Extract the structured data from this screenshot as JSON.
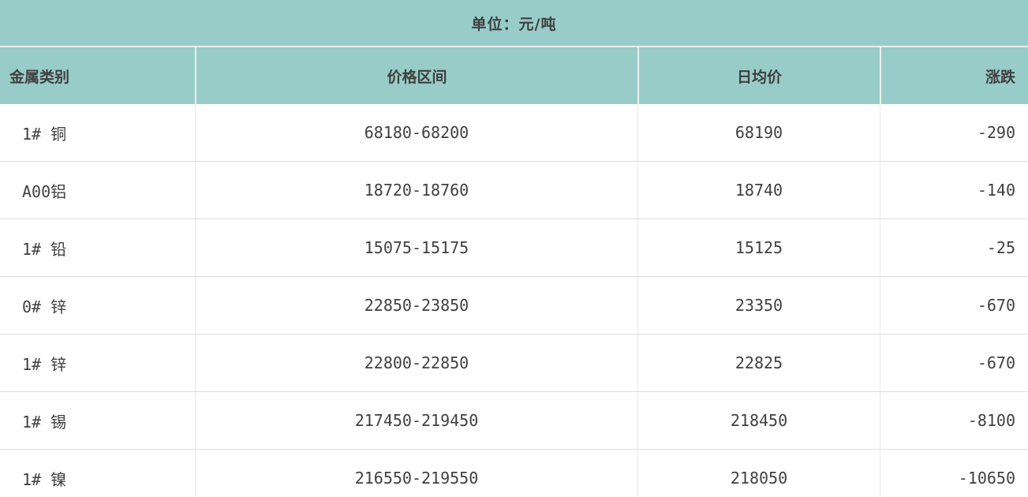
{
  "chart_data": {
    "type": "table",
    "title": "单位：元/吨",
    "columns": [
      "金属类别",
      "价格区间",
      "日均价",
      "涨跌"
    ],
    "column_alignments": [
      "left",
      "center",
      "center",
      "right"
    ],
    "rows": [
      [
        "1# 铜",
        "68180-68200",
        "68190",
        "-290"
      ],
      [
        "A00铝",
        "18720-18760",
        "18740",
        "-140"
      ],
      [
        "1# 铅",
        "15075-15175",
        "15125",
        "-25"
      ],
      [
        "0# 锌",
        "22850-23850",
        "23350",
        "-670"
      ],
      [
        "1# 锌",
        "22800-22850",
        "22825",
        "-670"
      ],
      [
        "1# 锡",
        "217450-219450",
        "218450",
        "-8100"
      ],
      [
        "1# 镍",
        "216550-219550",
        "218050",
        "-10650"
      ]
    ]
  },
  "colors": {
    "header_bg": "#98ccc9",
    "row_bg": "#ffffff",
    "grid_line": "#dedede",
    "header_divider": "#ededed",
    "text": "#404040"
  }
}
